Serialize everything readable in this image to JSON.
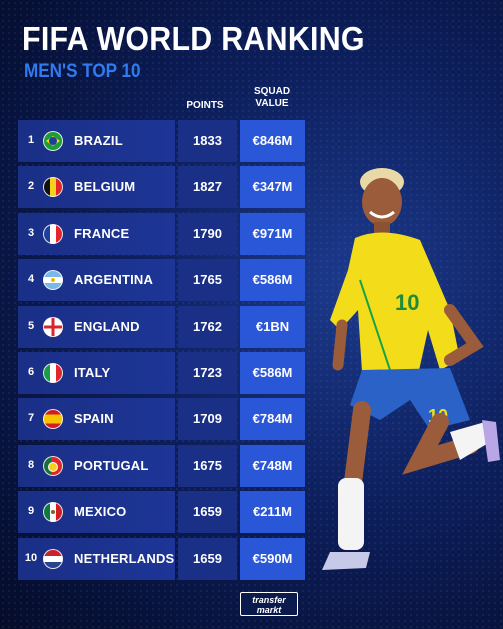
{
  "header": {
    "title": "FIFA WORLD RANKING",
    "subtitle": "MEN'S TOP 10"
  },
  "columns": {
    "points": "POINTS",
    "squad_value_line1": "SQUAD",
    "squad_value_line2": "VALUE"
  },
  "rows": [
    {
      "rank": "1",
      "country": "BRAZIL",
      "points": "1833",
      "value": "€846M",
      "flag": "brazil-flag-icon"
    },
    {
      "rank": "2",
      "country": "BELGIUM",
      "points": "1827",
      "value": "€347M",
      "flag": "belgium-flag-icon"
    },
    {
      "rank": "3",
      "country": "FRANCE",
      "points": "1790",
      "value": "€971M",
      "flag": "france-flag-icon"
    },
    {
      "rank": "4",
      "country": "ARGENTINA",
      "points": "1765",
      "value": "€586M",
      "flag": "argentina-flag-icon"
    },
    {
      "rank": "5",
      "country": "ENGLAND",
      "points": "1762",
      "value": "€1BN",
      "flag": "england-flag-icon"
    },
    {
      "rank": "6",
      "country": "ITALY",
      "points": "1723",
      "value": "€586M",
      "flag": "italy-flag-icon"
    },
    {
      "rank": "7",
      "country": "SPAIN",
      "points": "1709",
      "value": "€784M",
      "flag": "spain-flag-icon"
    },
    {
      "rank": "8",
      "country": "PORTUGAL",
      "points": "1675",
      "value": "€748M",
      "flag": "portugal-flag-icon"
    },
    {
      "rank": "9",
      "country": "MEXICO",
      "points": "1659",
      "value": "€211M",
      "flag": "mexico-flag-icon"
    },
    {
      "rank": "10",
      "country": "NETHERLANDS",
      "points": "1659",
      "value": "€590M",
      "flag": "netherlands-flag-icon"
    }
  ],
  "logo": {
    "line1": "transfer",
    "line2": "markt"
  },
  "colors": {
    "accent": "#2f7cf0",
    "value_cell": "#2a56d8",
    "row_bg": "#1a2f86",
    "background": "#0d1f5c"
  }
}
